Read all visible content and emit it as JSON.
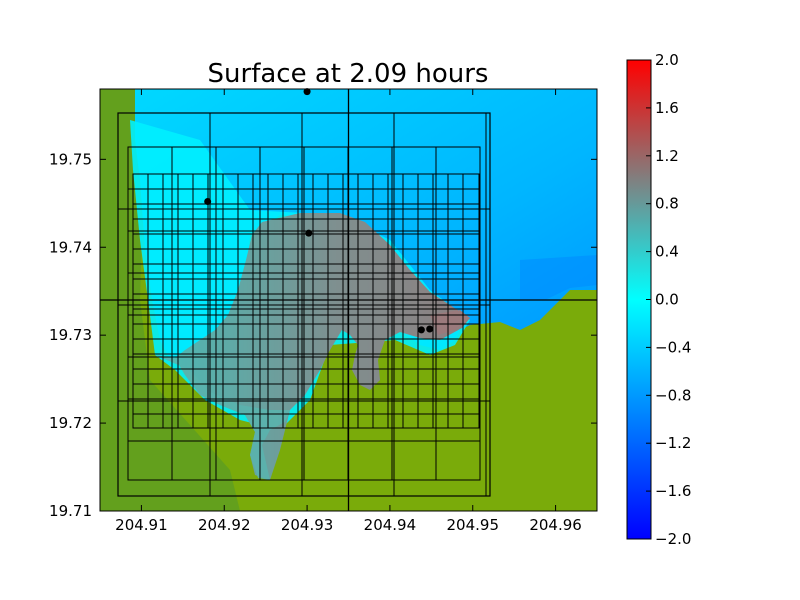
{
  "colors": {
    "land_dark": "#4e9a2c",
    "land": "#7aab0a",
    "water_deep": "#00aaff",
    "water_shallow": "#00e6ff",
    "inundation": "#8a8585",
    "inundation_mid": "#5aa8a8",
    "grid_line": "#000000"
  },
  "chart_data": {
    "type": "heatmap",
    "title": "Surface at 2.09 hours",
    "xlabel": "",
    "ylabel": "",
    "xlim": [
      204.905,
      204.965
    ],
    "ylim": [
      19.71,
      19.758
    ],
    "x_ticks": [
      "204.91",
      "204.92",
      "204.93",
      "204.94",
      "204.95",
      "204.96"
    ],
    "y_ticks": [
      "19.71",
      "19.72",
      "19.73",
      "19.74",
      "19.75"
    ],
    "colorbar": {
      "min": -2.0,
      "max": 2.0,
      "ticks": [
        "−2.0",
        "−1.6",
        "−1.2",
        "−0.8",
        "−0.4",
        "0.0",
        "0.4",
        "0.8",
        "1.2",
        "1.6",
        "2.0"
      ],
      "colormap": [
        "#0000ff",
        "#00ffff",
        "#808080",
        "#ff0000"
      ]
    },
    "gauges": [
      {
        "x": 204.93,
        "y": 19.7577
      },
      {
        "x": 204.918,
        "y": 19.7452
      },
      {
        "x": 204.9302,
        "y": 19.7416
      },
      {
        "x": 204.9438,
        "y": 19.7306
      },
      {
        "x": 204.9448,
        "y": 19.7307
      }
    ],
    "reference_lines": {
      "x": 204.935,
      "y": 19.734
    }
  }
}
